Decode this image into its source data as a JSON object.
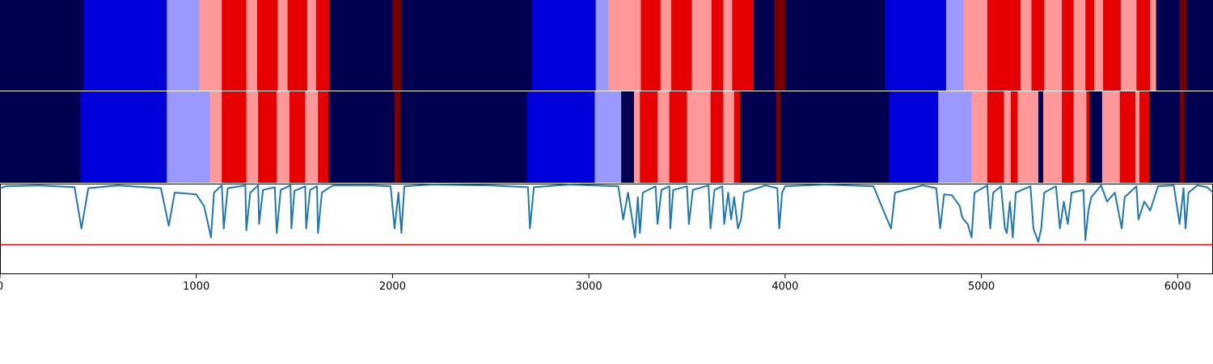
{
  "chart_data": {
    "type": "heatmap",
    "title": "",
    "xlabel": "",
    "ylabel": "",
    "xlim": [
      0,
      6180
    ],
    "xticks": [
      "0",
      "1000",
      "2000",
      "3000",
      "4000",
      "5000",
      "6000"
    ],
    "grid": false,
    "legend": "none",
    "palette": {
      "dark_navy": "#000050",
      "blue": "#0000dc",
      "light_blue": "#9999ff",
      "light_red": "#ff9999",
      "red": "#e60000",
      "dark_red": "#780000"
    },
    "bands": [
      {
        "name": "",
        "segments": [
          [
            0,
            425,
            "dark_navy"
          ],
          [
            425,
            850,
            "blue"
          ],
          [
            850,
            1015,
            "light_blue"
          ],
          [
            1015,
            1130,
            "light_red"
          ],
          [
            1130,
            1255,
            "red"
          ],
          [
            1255,
            1310,
            "light_red"
          ],
          [
            1310,
            1415,
            "red"
          ],
          [
            1415,
            1465,
            "light_red"
          ],
          [
            1465,
            1565,
            "red"
          ],
          [
            1565,
            1610,
            "light_red"
          ],
          [
            1610,
            1680,
            "red"
          ],
          [
            1680,
            2000,
            "dark_navy"
          ],
          [
            2000,
            2045,
            "dark_red"
          ],
          [
            2045,
            2710,
            "dark_navy"
          ],
          [
            2710,
            3035,
            "blue"
          ],
          [
            3035,
            3100,
            "light_blue"
          ],
          [
            3100,
            3265,
            "light_red"
          ],
          [
            3265,
            3365,
            "red"
          ],
          [
            3365,
            3420,
            "light_red"
          ],
          [
            3420,
            3525,
            "red"
          ],
          [
            3525,
            3625,
            "light_red"
          ],
          [
            3625,
            3685,
            "red"
          ],
          [
            3685,
            3730,
            "light_red"
          ],
          [
            3730,
            3840,
            "red"
          ],
          [
            3840,
            3945,
            "dark_navy"
          ],
          [
            3945,
            4000,
            "dark_red"
          ],
          [
            4000,
            4510,
            "dark_navy"
          ],
          [
            4510,
            4820,
            "blue"
          ],
          [
            4820,
            4910,
            "light_blue"
          ],
          [
            4910,
            5030,
            "light_red"
          ],
          [
            5030,
            5200,
            "red"
          ],
          [
            5200,
            5255,
            "light_red"
          ],
          [
            5255,
            5320,
            "red"
          ],
          [
            5320,
            5410,
            "light_red"
          ],
          [
            5410,
            5470,
            "red"
          ],
          [
            5470,
            5530,
            "light_red"
          ],
          [
            5530,
            5575,
            "red"
          ],
          [
            5575,
            5620,
            "light_red"
          ],
          [
            5620,
            5710,
            "red"
          ],
          [
            5710,
            5790,
            "light_red"
          ],
          [
            5790,
            5860,
            "red"
          ],
          [
            5860,
            5890,
            "light_red"
          ],
          [
            5890,
            6010,
            "dark_navy"
          ],
          [
            6010,
            6045,
            "dark_red"
          ],
          [
            6045,
            6180,
            "dark_navy"
          ]
        ]
      },
      {
        "name": "",
        "segments": [
          [
            0,
            410,
            "dark_navy"
          ],
          [
            410,
            850,
            "blue"
          ],
          [
            850,
            1070,
            "light_blue"
          ],
          [
            1070,
            1130,
            "light_red"
          ],
          [
            1130,
            1255,
            "red"
          ],
          [
            1255,
            1315,
            "light_red"
          ],
          [
            1315,
            1410,
            "red"
          ],
          [
            1410,
            1475,
            "light_red"
          ],
          [
            1475,
            1555,
            "red"
          ],
          [
            1555,
            1620,
            "light_red"
          ],
          [
            1620,
            1675,
            "red"
          ],
          [
            1675,
            2010,
            "dark_navy"
          ],
          [
            2010,
            2040,
            "dark_red"
          ],
          [
            2040,
            2685,
            "dark_navy"
          ],
          [
            2685,
            3030,
            "blue"
          ],
          [
            3030,
            3165,
            "light_blue"
          ],
          [
            3165,
            3230,
            "dark_navy"
          ],
          [
            3230,
            3260,
            "light_red"
          ],
          [
            3260,
            3350,
            "red"
          ],
          [
            3350,
            3410,
            "light_red"
          ],
          [
            3410,
            3500,
            "red"
          ],
          [
            3500,
            3620,
            "light_red"
          ],
          [
            3620,
            3685,
            "red"
          ],
          [
            3685,
            3740,
            "light_red"
          ],
          [
            3740,
            3770,
            "red"
          ],
          [
            3770,
            3955,
            "dark_navy"
          ],
          [
            3955,
            3975,
            "dark_red"
          ],
          [
            3975,
            4530,
            "dark_navy"
          ],
          [
            4530,
            4780,
            "blue"
          ],
          [
            4780,
            4950,
            "light_blue"
          ],
          [
            4950,
            5030,
            "light_red"
          ],
          [
            5030,
            5115,
            "red"
          ],
          [
            5115,
            5150,
            "light_red"
          ],
          [
            5150,
            5185,
            "red"
          ],
          [
            5185,
            5290,
            "light_red"
          ],
          [
            5290,
            5315,
            "dark_navy"
          ],
          [
            5315,
            5410,
            "light_red"
          ],
          [
            5410,
            5470,
            "red"
          ],
          [
            5470,
            5535,
            "light_red"
          ],
          [
            5535,
            5550,
            "red"
          ],
          [
            5550,
            5615,
            "dark_navy"
          ],
          [
            5615,
            5705,
            "light_red"
          ],
          [
            5705,
            5785,
            "red"
          ],
          [
            5785,
            5805,
            "light_red"
          ],
          [
            5805,
            5855,
            "red"
          ],
          [
            5855,
            6010,
            "dark_navy"
          ],
          [
            6010,
            6035,
            "dark_red"
          ],
          [
            6035,
            6180,
            "dark_navy"
          ]
        ]
      }
    ],
    "line": {
      "name": "",
      "color": "#1f77b4",
      "ylim": [
        0,
        1
      ],
      "baseline_value": 0.97,
      "points": [
        [
          0,
          0.95
        ],
        [
          30,
          0.97
        ],
        [
          200,
          0.98
        ],
        [
          380,
          0.96
        ],
        [
          415,
          0.5
        ],
        [
          450,
          0.95
        ],
        [
          600,
          0.98
        ],
        [
          820,
          0.95
        ],
        [
          860,
          0.53
        ],
        [
          890,
          0.9
        ],
        [
          1000,
          0.88
        ],
        [
          1040,
          0.75
        ],
        [
          1060,
          0.55
        ],
        [
          1075,
          0.4
        ],
        [
          1090,
          0.9
        ],
        [
          1130,
          0.98
        ],
        [
          1140,
          0.5
        ],
        [
          1160,
          0.95
        ],
        [
          1250,
          0.98
        ],
        [
          1255,
          0.48
        ],
        [
          1275,
          0.9
        ],
        [
          1315,
          0.98
        ],
        [
          1320,
          0.55
        ],
        [
          1340,
          0.93
        ],
        [
          1400,
          0.96
        ],
        [
          1410,
          0.45
        ],
        [
          1430,
          0.93
        ],
        [
          1480,
          0.98
        ],
        [
          1485,
          0.5
        ],
        [
          1500,
          0.92
        ],
        [
          1555,
          0.97
        ],
        [
          1560,
          0.5
        ],
        [
          1580,
          0.93
        ],
        [
          1615,
          0.97
        ],
        [
          1620,
          0.45
        ],
        [
          1640,
          0.9
        ],
        [
          1680,
          0.96
        ],
        [
          1700,
          0.98
        ],
        [
          1900,
          0.98
        ],
        [
          1990,
          0.97
        ],
        [
          2010,
          0.5
        ],
        [
          2030,
          0.9
        ],
        [
          2045,
          0.45
        ],
        [
          2060,
          0.97
        ],
        [
          2200,
          0.99
        ],
        [
          2500,
          0.98
        ],
        [
          2690,
          0.96
        ],
        [
          2700,
          0.5
        ],
        [
          2720,
          0.96
        ],
        [
          2900,
          0.99
        ],
        [
          3150,
          0.97
        ],
        [
          3175,
          0.6
        ],
        [
          3200,
          0.9
        ],
        [
          3235,
          0.4
        ],
        [
          3250,
          0.85
        ],
        [
          3260,
          0.45
        ],
        [
          3275,
          0.9
        ],
        [
          3340,
          0.97
        ],
        [
          3350,
          0.55
        ],
        [
          3370,
          0.93
        ],
        [
          3410,
          0.97
        ],
        [
          3415,
          0.5
        ],
        [
          3430,
          0.93
        ],
        [
          3500,
          0.97
        ],
        [
          3510,
          0.55
        ],
        [
          3530,
          0.93
        ],
        [
          3610,
          0.98
        ],
        [
          3620,
          0.5
        ],
        [
          3640,
          0.93
        ],
        [
          3680,
          0.97
        ],
        [
          3690,
          0.55
        ],
        [
          3710,
          0.9
        ],
        [
          3725,
          0.6
        ],
        [
          3740,
          0.85
        ],
        [
          3760,
          0.5
        ],
        [
          3775,
          0.6
        ],
        [
          3790,
          0.9
        ],
        [
          3900,
          0.98
        ],
        [
          3960,
          0.95
        ],
        [
          3970,
          0.5
        ],
        [
          3985,
          0.9
        ],
        [
          4000,
          0.97
        ],
        [
          4200,
          0.99
        ],
        [
          4450,
          0.97
        ],
        [
          4520,
          0.6
        ],
        [
          4540,
          0.5
        ],
        [
          4560,
          0.9
        ],
        [
          4700,
          0.98
        ],
        [
          4770,
          0.95
        ],
        [
          4790,
          0.5
        ],
        [
          4810,
          0.88
        ],
        [
          4850,
          0.87
        ],
        [
          4890,
          0.75
        ],
        [
          4900,
          0.64
        ],
        [
          4910,
          0.6
        ],
        [
          4930,
          0.55
        ],
        [
          4950,
          0.4
        ],
        [
          4965,
          0.9
        ],
        [
          5030,
          0.98
        ],
        [
          5045,
          0.5
        ],
        [
          5060,
          0.9
        ],
        [
          5100,
          0.97
        ],
        [
          5120,
          0.5
        ],
        [
          5130,
          0.45
        ],
        [
          5145,
          0.8
        ],
        [
          5160,
          0.4
        ],
        [
          5175,
          0.9
        ],
        [
          5250,
          0.97
        ],
        [
          5265,
          0.5
        ],
        [
          5290,
          0.35
        ],
        [
          5305,
          0.5
        ],
        [
          5320,
          0.9
        ],
        [
          5380,
          0.97
        ],
        [
          5400,
          0.5
        ],
        [
          5420,
          0.8
        ],
        [
          5440,
          0.55
        ],
        [
          5460,
          0.9
        ],
        [
          5520,
          0.93
        ],
        [
          5530,
          0.37
        ],
        [
          5545,
          0.7
        ],
        [
          5560,
          0.85
        ],
        [
          5610,
          0.98
        ],
        [
          5640,
          0.8
        ],
        [
          5680,
          0.9
        ],
        [
          5715,
          0.5
        ],
        [
          5730,
          0.85
        ],
        [
          5790,
          0.97
        ],
        [
          5800,
          0.6
        ],
        [
          5830,
          0.8
        ],
        [
          5860,
          0.7
        ],
        [
          5900,
          0.97
        ],
        [
          5980,
          0.98
        ],
        [
          6010,
          0.55
        ],
        [
          6030,
          0.95
        ],
        [
          6040,
          0.5
        ],
        [
          6055,
          0.9
        ],
        [
          6100,
          0.98
        ],
        [
          6150,
          0.96
        ],
        [
          6180,
          0.9
        ]
      ]
    },
    "threshold": {
      "value": 0.32,
      "color": "#ff0000"
    }
  }
}
